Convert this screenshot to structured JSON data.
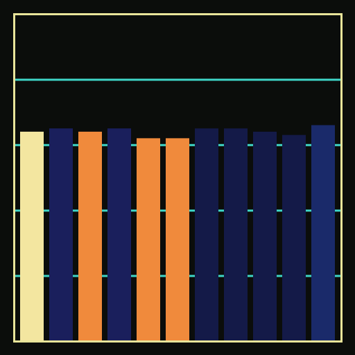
{
  "chart_data": {
    "type": "bar",
    "categories": [
      null,
      null,
      null,
      null,
      null,
      null,
      null,
      null,
      null,
      null,
      null
    ],
    "values": [
      64,
      65,
      64,
      65,
      62,
      62,
      65,
      65,
      64,
      63,
      66
    ],
    "colors": [
      "#f3e6a0",
      "#1a1f5c",
      "#f08a3c",
      "#1a1f5c",
      "#f08a3c",
      "#f08a3c",
      "#141a48",
      "#141a48",
      "#141a48",
      "#141a48",
      "#1a2a6a"
    ],
    "ylim": [
      0,
      100
    ],
    "yticks": [
      0,
      20,
      40,
      60,
      80,
      100
    ],
    "grid": true,
    "tick_labels": false
  }
}
